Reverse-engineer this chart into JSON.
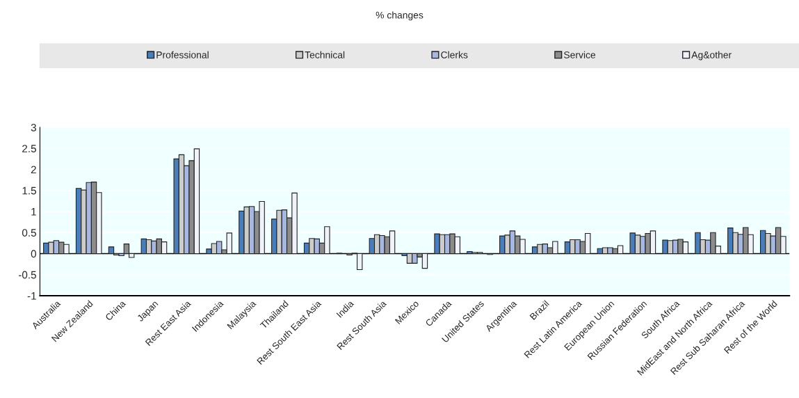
{
  "chart_data": {
    "type": "bar",
    "title": "% changes",
    "categories": [
      "Australia",
      "New Zealand",
      "China",
      "Japan",
      "Rest East Asia",
      "Indonesia",
      "Malaysia",
      "Thailand",
      "Rest South East Asia",
      "India",
      "Rest South Asia",
      "Mexico",
      "Canada",
      "United States",
      "Argentina",
      "Brazil",
      "Rest Latin America",
      "European Union",
      "Russian Federation",
      "South Africa",
      "MidEast and North Africa",
      "Rest Sub Saharan Africa",
      "Rest of the World"
    ],
    "series": [
      {
        "name": "Professional",
        "color": "#4a7ebb",
        "values": [
          0.25,
          1.55,
          0.16,
          0.35,
          2.25,
          0.11,
          1.01,
          0.82,
          0.25,
          0.01,
          0.36,
          -0.05,
          0.47,
          0.05,
          0.42,
          0.16,
          0.28,
          0.12,
          0.49,
          0.32,
          0.5,
          0.61,
          0.55
        ]
      },
      {
        "name": "Technical",
        "color": "#cccccc",
        "values": [
          0.27,
          1.51,
          -0.03,
          0.33,
          2.35,
          0.24,
          1.11,
          1.03,
          0.36,
          0.0,
          0.45,
          -0.23,
          0.45,
          0.03,
          0.44,
          0.22,
          0.33,
          0.14,
          0.44,
          0.31,
          0.33,
          0.5,
          0.48
        ]
      },
      {
        "name": "Clerks",
        "color": "#a6b8e0",
        "values": [
          0.31,
          1.69,
          -0.05,
          0.3,
          2.09,
          0.29,
          1.12,
          1.04,
          0.35,
          -0.03,
          0.43,
          -0.23,
          0.45,
          0.03,
          0.54,
          0.23,
          0.33,
          0.14,
          0.41,
          0.32,
          0.32,
          0.46,
          0.42
        ]
      },
      {
        "name": "Service",
        "color": "#8c8c8c",
        "values": [
          0.27,
          1.7,
          0.23,
          0.35,
          2.21,
          0.09,
          1.0,
          0.85,
          0.25,
          0.01,
          0.4,
          -0.08,
          0.47,
          0.0,
          0.42,
          0.14,
          0.29,
          0.12,
          0.48,
          0.34,
          0.5,
          0.62,
          0.62
        ]
      },
      {
        "name": "Ag&other",
        "color": "#f0f2fa",
        "values": [
          0.22,
          1.45,
          -0.09,
          0.28,
          2.49,
          0.49,
          1.24,
          1.44,
          0.64,
          -0.38,
          0.54,
          -0.35,
          0.4,
          -0.02,
          0.34,
          0.29,
          0.48,
          0.19,
          0.54,
          0.28,
          0.18,
          0.45,
          0.41
        ]
      }
    ],
    "ylim": [
      -1,
      3
    ],
    "yticks": [
      {
        "value": -1,
        "label": "-1"
      },
      {
        "value": -0.5,
        "label": "-0.5"
      },
      0,
      0.5,
      1,
      1.5,
      2,
      2.5,
      3
    ],
    "ref_lines": [
      {
        "axis": "y",
        "value": 0
      }
    ],
    "grid": "y",
    "legend": "top"
  }
}
